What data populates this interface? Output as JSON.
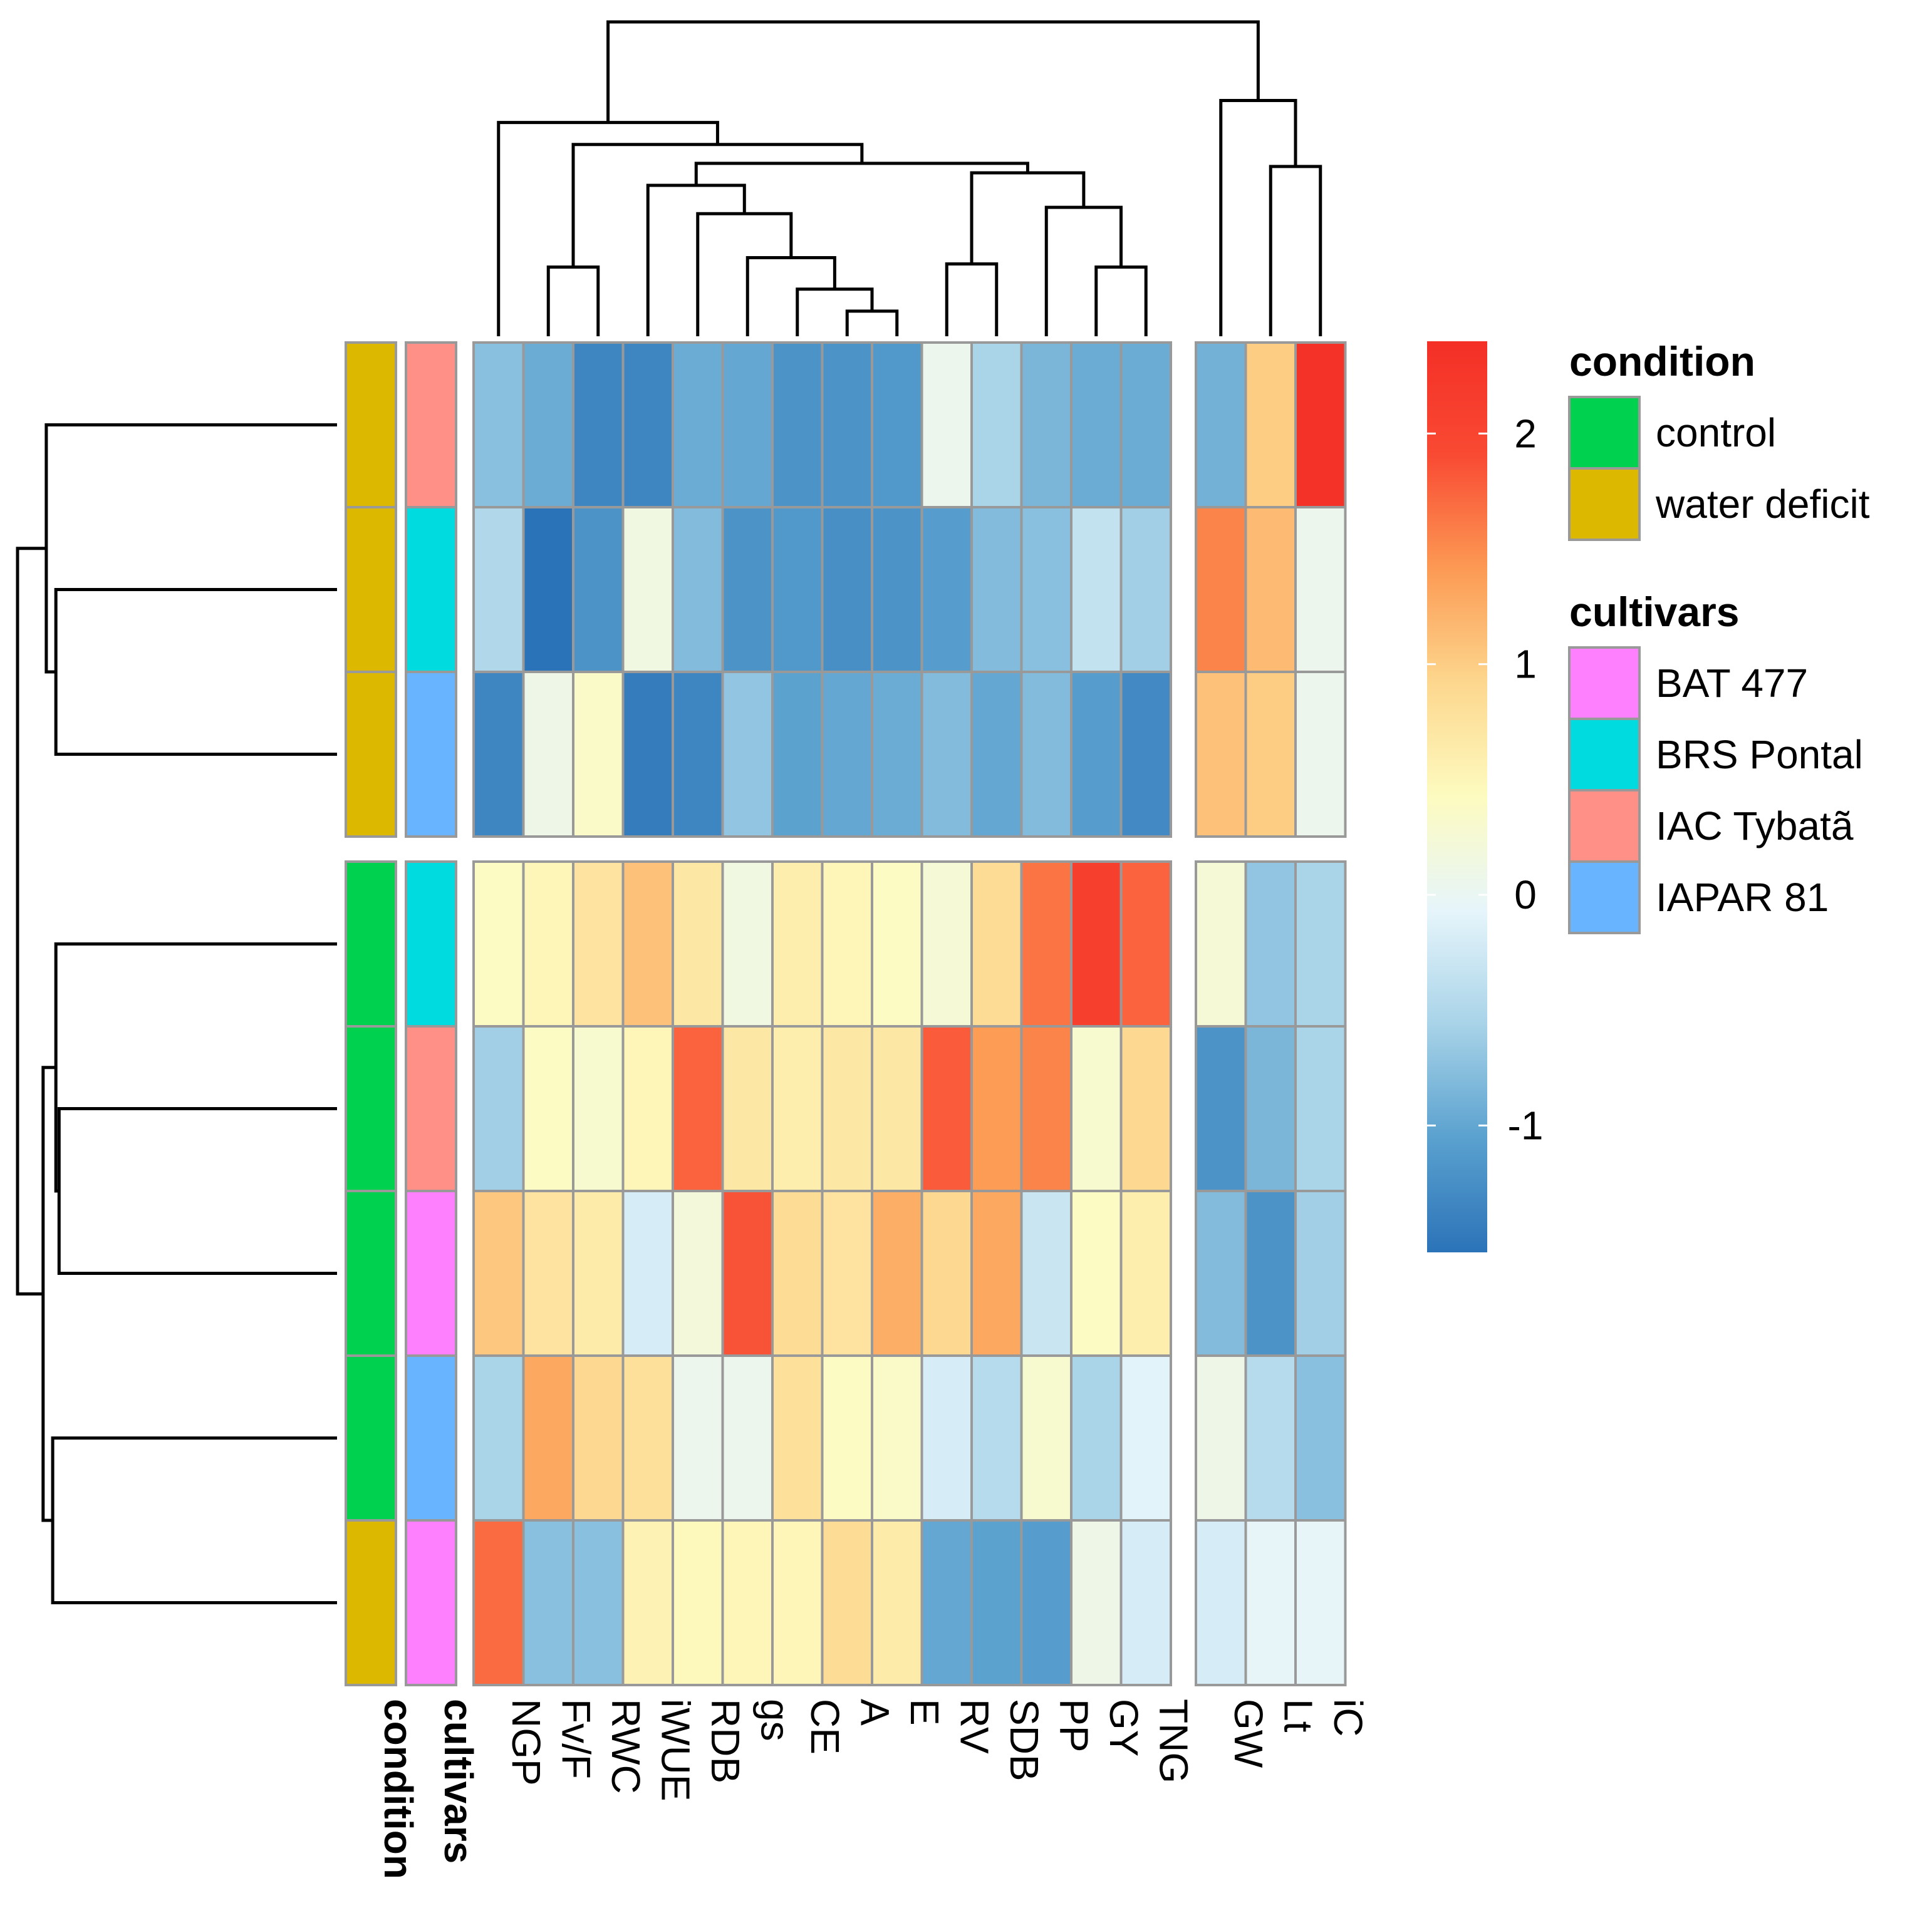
{
  "chart_data": {
    "type": "heatmap",
    "title": "",
    "columns": [
      "NGP",
      "Fv/F",
      "RWC",
      "iWUE",
      "RDB",
      "gs",
      "CE",
      "A",
      "E",
      "RV",
      "SDB",
      "PP",
      "GY",
      "TNG",
      "GW",
      "Lt",
      "iC"
    ],
    "column_groups": [
      [
        "NGP",
        "Fv/F",
        "RWC",
        "iWUE",
        "RDB",
        "gs",
        "CE",
        "A",
        "E",
        "RV",
        "SDB",
        "PP",
        "GY",
        "TNG"
      ],
      [
        "GW",
        "Lt",
        "iC"
      ]
    ],
    "rows": [
      {
        "condition": "water deficit",
        "cultivar": "IAC Tybatã",
        "values": [
          -0.75,
          -0.95,
          -1.35,
          -1.35,
          -0.95,
          -1.0,
          -1.2,
          -1.2,
          -1.15,
          0.05,
          -0.55,
          -0.85,
          -0.95,
          -0.95,
          -0.9,
          1.0,
          2.35
        ]
      },
      {
        "condition": "water deficit",
        "cultivar": "BRS Pontal",
        "values": [
          -0.5,
          -1.55,
          -1.2,
          0.15,
          -0.8,
          -1.2,
          -1.15,
          -1.25,
          -1.2,
          -1.1,
          -0.8,
          -0.75,
          -0.35,
          -0.6,
          1.55,
          1.15,
          0.05
        ]
      },
      {
        "condition": "water deficit",
        "cultivar": "IAPAR 81",
        "values": [
          -1.35,
          0.1,
          0.35,
          -1.45,
          -1.35,
          -0.7,
          -1.05,
          -1.0,
          -0.95,
          -0.8,
          -1.0,
          -0.8,
          -1.1,
          -1.3,
          1.1,
          1.0,
          0.05
        ]
      },
      {
        "condition": "control",
        "cultivar": "BRS Pontal",
        "values": [
          0.4,
          0.5,
          0.75,
          1.1,
          0.7,
          0.15,
          0.6,
          0.5,
          0.4,
          0.25,
          0.85,
          1.65,
          2.1,
          1.75,
          0.25,
          -0.7,
          -0.55
        ]
      },
      {
        "condition": "control",
        "cultivar": "IAC Tybatã",
        "values": [
          -0.6,
          0.4,
          0.3,
          0.5,
          1.75,
          0.7,
          0.6,
          0.7,
          0.7,
          1.8,
          1.4,
          1.55,
          0.3,
          0.9,
          -1.2,
          -0.85,
          -0.55
        ]
      },
      {
        "condition": "control",
        "cultivar": "BAT 477",
        "values": [
          1.05,
          0.75,
          0.65,
          -0.2,
          0.2,
          1.85,
          0.85,
          0.75,
          1.25,
          0.9,
          1.3,
          -0.3,
          0.4,
          0.6,
          -0.8,
          -1.2,
          -0.6
        ]
      },
      {
        "condition": "control",
        "cultivar": "IAPAR 81",
        "values": [
          -0.55,
          1.3,
          0.9,
          0.8,
          0.05,
          0.05,
          0.8,
          0.4,
          0.35,
          -0.2,
          -0.45,
          0.3,
          -0.55,
          -0.1,
          0.1,
          -0.45,
          -0.75
        ]
      },
      {
        "condition": "water deficit",
        "cultivar": "BAT 477",
        "values": [
          1.7,
          -0.75,
          -0.75,
          0.55,
          0.45,
          0.5,
          0.5,
          0.85,
          0.65,
          -1.0,
          -1.05,
          -1.1,
          0.1,
          -0.2,
          -0.2,
          -0.05,
          -0.05
        ]
      }
    ],
    "row_group_sizes": [
      3,
      5
    ],
    "scale": {
      "min": -1.55,
      "max": 2.4,
      "ticks": [
        -1,
        0,
        1,
        2
      ],
      "tick_labels": [
        "-1",
        "0",
        "1",
        "2"
      ]
    },
    "colormap": [
      "#2b73b8",
      "#5aa1cf",
      "#a8d3e8",
      "#e6f5fb",
      "#fdfbc0",
      "#fdd78e",
      "#fc9a54",
      "#f94a33",
      "#f42f26"
    ],
    "annotation_labels": [
      "condition",
      "cultivars"
    ],
    "legend": {
      "condition": {
        "title": "condition",
        "items": [
          {
            "label": "control",
            "color": "#00d250"
          },
          {
            "label": "water deficit",
            "color": "#ddb800"
          }
        ]
      },
      "cultivars": {
        "title": "cultivars",
        "items": [
          {
            "label": "BAT 477",
            "color": "#ff80ff"
          },
          {
            "label": "BRS Pontal",
            "color": "#00dbe0"
          },
          {
            "label": "IAC Tybatã",
            "color": "#ff9088"
          },
          {
            "label": "IAPAR 81",
            "color": "#68b4ff"
          }
        ]
      }
    },
    "column_dendrogram": {
      "leaf_order": [
        "NGP",
        "Fv/F",
        "RWC",
        "iWUE",
        "RDB",
        "gs",
        "CE",
        "A",
        "E",
        "RV",
        "SDB",
        "PP",
        "GY",
        "TNG",
        "GW",
        "Lt",
        "iC"
      ],
      "merges": [
        {
          "a": 7,
          "b": 8,
          "height": 0.08
        },
        {
          "a": 6,
          "b": 17,
          "height": 0.15
        },
        {
          "a": 5,
          "b": 18,
          "height": 0.25
        },
        {
          "a": 12,
          "b": 13,
          "height": 0.22
        },
        {
          "a": 1,
          "b": 2,
          "height": 0.22
        },
        {
          "a": 4,
          "b": 19,
          "height": 0.39
        },
        {
          "a": 11,
          "b": 20,
          "height": 0.41
        },
        {
          "a": 9,
          "b": 10,
          "height": 0.23
        },
        {
          "a": 3,
          "b": 22,
          "height": 0.48
        },
        {
          "a": 24,
          "b": 23,
          "height": 0.52
        },
        {
          "a": 25,
          "b": 26,
          "height": 0.55
        },
        {
          "a": 21,
          "b": 27,
          "height": 0.61
        },
        {
          "a": 0,
          "b": 28,
          "height": 0.68
        },
        {
          "a": 15,
          "b": 16,
          "height": 0.54
        },
        {
          "a": 14,
          "b": 30,
          "height": 0.75
        },
        {
          "a": 29,
          "b": 31,
          "height": 1.0
        }
      ]
    },
    "row_dendrogram": {
      "leaf_order": [
        0,
        1,
        2,
        3,
        4,
        5,
        6,
        7
      ],
      "merges": [
        {
          "a": 1,
          "b": 2,
          "height": 0.88
        },
        {
          "a": 0,
          "b": 8,
          "height": 0.91
        },
        {
          "a": 4,
          "b": 5,
          "height": 0.87
        },
        {
          "a": 3,
          "b": 10,
          "height": 0.88
        },
        {
          "a": 6,
          "b": 7,
          "height": 0.89
        },
        {
          "a": 11,
          "b": 12,
          "height": 0.92
        },
        {
          "a": 9,
          "b": 13,
          "height": 1.0
        }
      ]
    }
  }
}
